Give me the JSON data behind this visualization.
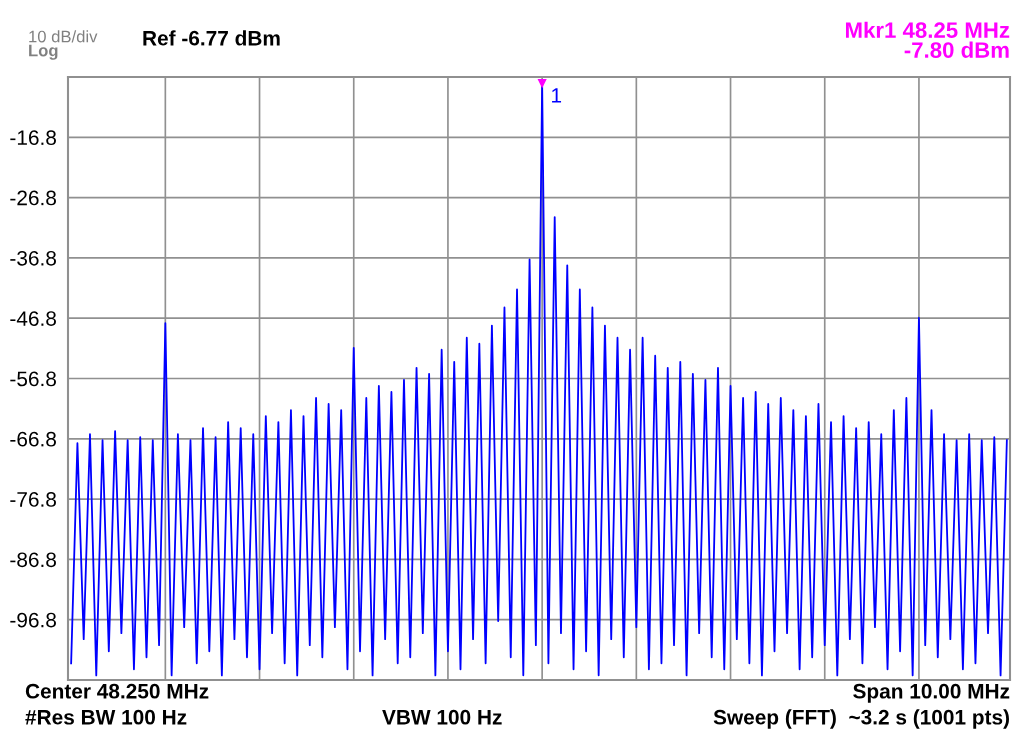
{
  "chart_data": {
    "type": "line",
    "categories": [
      null,
      null,
      null,
      null,
      null,
      null,
      null,
      null,
      null,
      null,
      null,
      null,
      null,
      null,
      null,
      null,
      null,
      null,
      null,
      null,
      null,
      null,
      null,
      null,
      null,
      null,
      null,
      null,
      null,
      null,
      null,
      null,
      null,
      null,
      null,
      null,
      null,
      null,
      null,
      null,
      null,
      null,
      null,
      null,
      null,
      null,
      null,
      null,
      null,
      null,
      null,
      null,
      null,
      null,
      null,
      null,
      null,
      null,
      null,
      null,
      null,
      null,
      null,
      null,
      null,
      null,
      null,
      null,
      null,
      null,
      null,
      null,
      null,
      null,
      null,
      null,
      null,
      null,
      null,
      null,
      null,
      null,
      null,
      null,
      null,
      null,
      null,
      null,
      null,
      null,
      null,
      null,
      null,
      null,
      null,
      null,
      null,
      null,
      null,
      null,
      null,
      null,
      null,
      null,
      null,
      null,
      null,
      null,
      null,
      null,
      null,
      null,
      null,
      null,
      null,
      null,
      null,
      null,
      null,
      null,
      null,
      null,
      null,
      null,
      null,
      null,
      null,
      null,
      null,
      null,
      null,
      null,
      null,
      null,
      null,
      null,
      null,
      null,
      null,
      null,
      null,
      null,
      null,
      null,
      null,
      null,
      null,
      null,
      null,
      null
    ],
    "series": [
      {
        "color": "#0000ff",
        "values": [
          -104,
          -67.5,
          -100,
          -66,
          -106,
          -67,
          -102,
          -65.5,
          -99,
          -67,
          -105,
          -66.5,
          -103,
          -67,
          -101,
          -47.6,
          -106,
          -66,
          -98,
          -67,
          -104,
          -65,
          -102,
          -66.5,
          -106,
          -64,
          -100,
          -65,
          -103,
          -66,
          -105,
          -63,
          -99,
          -64,
          -104,
          -62,
          -106,
          -63,
          -101,
          -60,
          -103,
          -61,
          -98,
          -62,
          -105,
          -51.7,
          -102,
          -60,
          -106,
          -58,
          -100,
          -59,
          -104,
          -57,
          -103,
          -55,
          -99,
          -56,
          -106,
          -52,
          -102,
          -54,
          -105,
          -50,
          -100,
          -51,
          -104,
          -48,
          -97,
          -45,
          -103,
          -42,
          -106,
          -37,
          -101,
          -7.8,
          -104,
          -30,
          -99,
          -38,
          -105,
          -42,
          -102,
          -45,
          -106,
          -48,
          -100,
          -50,
          -103,
          -52,
          -98,
          -50,
          -105,
          -53,
          -104,
          -55,
          -101,
          -54,
          -106,
          -56,
          -99,
          -57,
          -103,
          -55,
          -105,
          -58,
          -100,
          -60,
          -104,
          -59,
          -106,
          -61,
          -102,
          -60,
          -99,
          -62,
          -105,
          -63,
          -103,
          -61,
          -101,
          -64,
          -106,
          -63,
          -100,
          -65,
          -104,
          -64,
          -98,
          -66,
          -105,
          -62,
          -102,
          -60,
          -106,
          -46.7,
          -101,
          -62,
          -103,
          -66,
          -100,
          -67,
          -105,
          -66,
          -104,
          -67,
          -99,
          -66.5,
          -106,
          -67
        ]
      }
    ],
    "ylim": [
      -106.77,
      -6.77
    ],
    "yticks": [
      {
        "value": -16.77,
        "label": "-16.8"
      },
      {
        "value": -26.77,
        "label": "-26.8"
      },
      {
        "value": -36.77,
        "label": "-36.8"
      },
      {
        "value": -46.77,
        "label": "-46.8"
      },
      {
        "value": -56.77,
        "label": "-56.8"
      },
      {
        "value": -66.77,
        "label": "-66.8"
      },
      {
        "value": -76.77,
        "label": "-76.8"
      },
      {
        "value": -86.77,
        "label": "-86.8"
      },
      {
        "value": -96.77,
        "label": "-96.8"
      }
    ],
    "grid": true,
    "tick_labels": "y",
    "marker": "none",
    "line_style": "solid",
    "annotations": [
      "10 dB/div",
      "Log",
      "Ref -6.77 dBm",
      "Mkr1 48.25 MHz\n-7.80 dBm",
      "1",
      "Center 48.250 MHz",
      "Span 10.00 MHz",
      "#Res BW 100 Hz",
      "VBW 100 Hz",
      "Sweep (FFT)  ~3.2 s (1001 pts)"
    ]
  }
}
